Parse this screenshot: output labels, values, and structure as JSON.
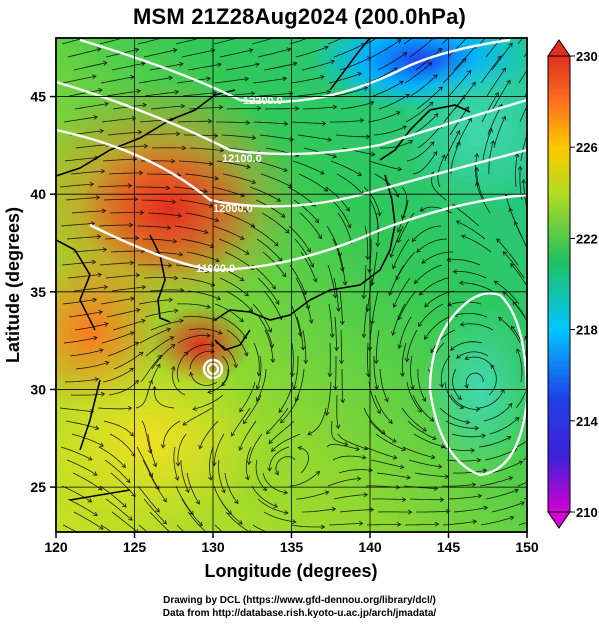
{
  "title": "MSM 21Z28Aug2024 (200.0hPa)",
  "x_axis": {
    "label": "Longitude (degrees)",
    "ticks": [
      "120",
      "125",
      "130",
      "135",
      "140",
      "145",
      "150"
    ]
  },
  "y_axis": {
    "label": "Latitude  (degrees)",
    "ticks": [
      "25",
      "30",
      "35",
      "40",
      "45"
    ]
  },
  "colorbar": {
    "ticks": [
      "210",
      "214",
      "218",
      "222",
      "226",
      "230"
    ],
    "colors": [
      "#d400d4",
      "#2020e0",
      "#00c8ff",
      "#20c060",
      "#b4dc20",
      "#ffc800",
      "#ff7020",
      "#e03020"
    ]
  },
  "contours": {
    "labels": [
      "12200.0",
      "12100.0",
      "12000.0",
      "11900.0"
    ],
    "color": "#ffffff"
  },
  "credits": {
    "line1": "Drawing by DCL (https://www.gfd-dennou.org/library/dcl/)",
    "line2": "Data from http://database.rish.kyoto-u.ac.jp/arch/jmadata/"
  }
}
